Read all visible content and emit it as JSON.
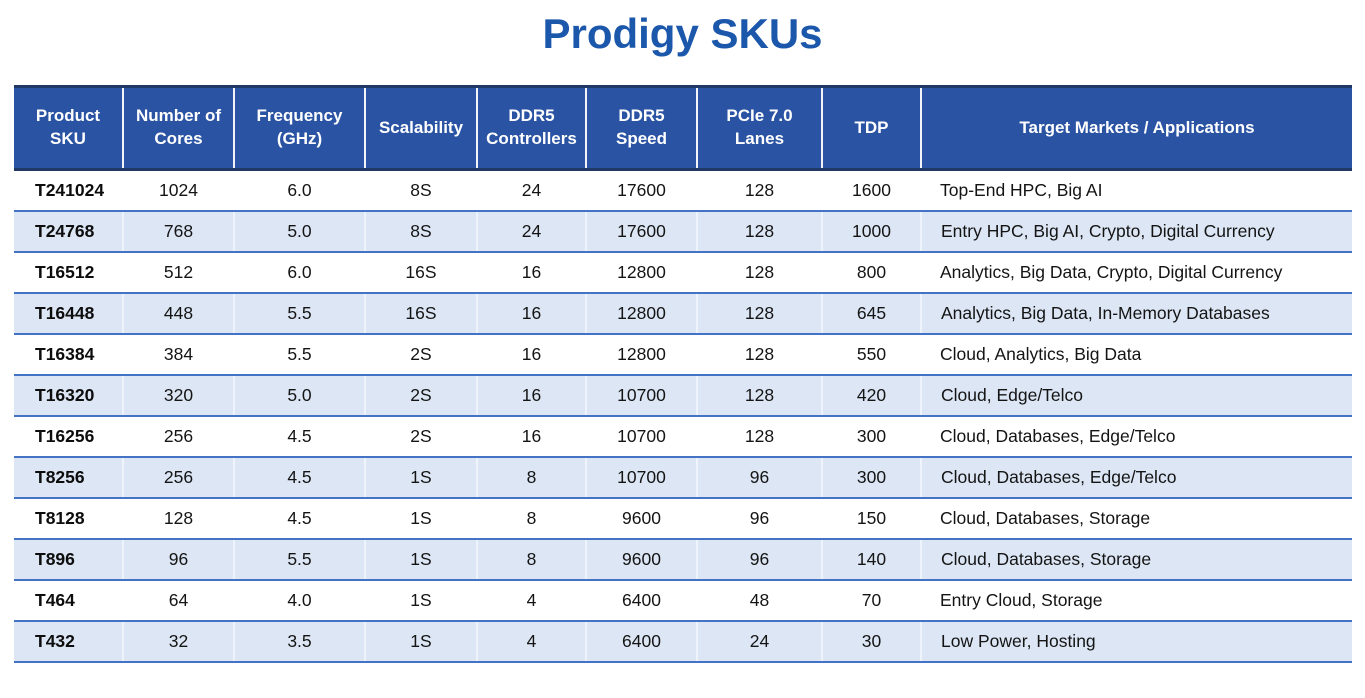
{
  "page_title": "Prodigy SKUs",
  "colors": {
    "title_blue": "#1B57AA",
    "header_bg": "#2A53A3",
    "header_border": "#1F3864",
    "row_line": "#4472C4",
    "row_alt_bg": "#DCE6F4"
  },
  "table": {
    "headers": [
      "Product\nSKU",
      "Number of\nCores",
      "Frequency\n(GHz)",
      "Scalability",
      "DDR5\nControllers",
      "DDR5\nSpeed",
      "PCIe 7.0\nLanes",
      "TDP",
      "Target Markets / Applications"
    ],
    "rows": [
      [
        "T241024",
        "1024",
        "6.0",
        "8S",
        "24",
        "17600",
        "128",
        "1600",
        "Top-End HPC, Big AI"
      ],
      [
        "T24768",
        "768",
        "5.0",
        "8S",
        "24",
        "17600",
        "128",
        "1000",
        "Entry HPC, Big AI, Crypto, Digital Currency"
      ],
      [
        "T16512",
        "512",
        "6.0",
        "16S",
        "16",
        "12800",
        "128",
        "800",
        "Analytics, Big Data, Crypto, Digital Currency"
      ],
      [
        "T16448",
        "448",
        "5.5",
        "16S",
        "16",
        "12800",
        "128",
        "645",
        "Analytics, Big Data, In-Memory Databases"
      ],
      [
        "T16384",
        "384",
        "5.5",
        "2S",
        "16",
        "12800",
        "128",
        "550",
        "Cloud, Analytics, Big Data"
      ],
      [
        "T16320",
        "320",
        "5.0",
        "2S",
        "16",
        "10700",
        "128",
        "420",
        "Cloud, Edge/Telco"
      ],
      [
        "T16256",
        "256",
        "4.5",
        "2S",
        "16",
        "10700",
        "128",
        "300",
        "Cloud, Databases, Edge/Telco"
      ],
      [
        "T8256",
        "256",
        "4.5",
        "1S",
        "8",
        "10700",
        "96",
        "300",
        "Cloud, Databases, Edge/Telco"
      ],
      [
        "T8128",
        "128",
        "4.5",
        "1S",
        "8",
        "9600",
        "96",
        "150",
        "Cloud, Databases, Storage"
      ],
      [
        "T896",
        "96",
        "5.5",
        "1S",
        "8",
        "9600",
        "96",
        "140",
        "Cloud, Databases, Storage"
      ],
      [
        "T464",
        "64",
        "4.0",
        "1S",
        "4",
        "6400",
        "48",
        "70",
        "Entry Cloud, Storage"
      ],
      [
        "T432",
        "32",
        "3.5",
        "1S",
        "4",
        "6400",
        "24",
        "30",
        "Low Power, Hosting"
      ]
    ]
  }
}
